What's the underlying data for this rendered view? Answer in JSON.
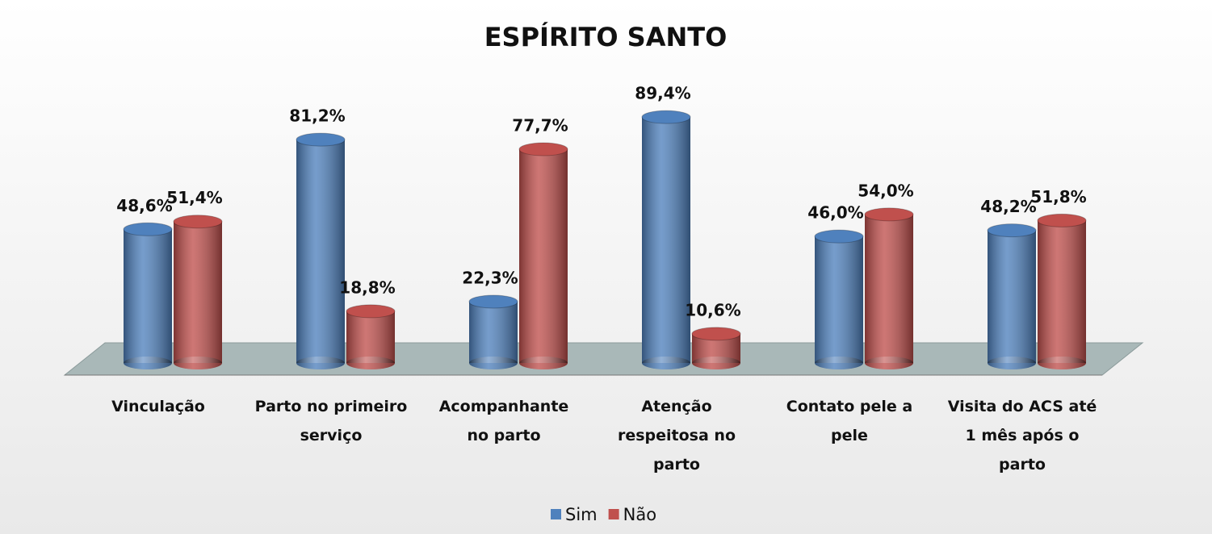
{
  "chart_data": {
    "type": "bar3d",
    "title": "ESPÍRITO SANTO",
    "categories": [
      "Vinculação",
      "Parto no primeiro serviço",
      "Acompanhante no parto",
      "Atenção respeitosa no parto",
      "Contato pele a pele",
      "Visita do ACS até 1 mês após o parto"
    ],
    "series": [
      {
        "name": "Sim",
        "color": "#4f81bd",
        "values": [
          48.6,
          81.2,
          22.3,
          89.4,
          46.0,
          48.2
        ],
        "value_labels": [
          "48,6%",
          "81,2%",
          "22,3%",
          "89,4%",
          "46,0%",
          "48,2%"
        ]
      },
      {
        "name": "Não",
        "color": "#c0504d",
        "values": [
          51.4,
          18.8,
          77.7,
          10.6,
          54.0,
          51.8
        ],
        "value_labels": [
          "51,4%",
          "18,8%",
          "77,7%",
          "10,6%",
          "54,0%",
          "51,8%"
        ]
      }
    ],
    "legend": "bottom"
  }
}
